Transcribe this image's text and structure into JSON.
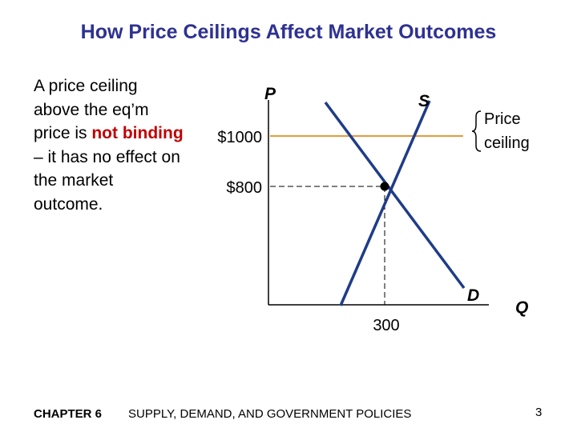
{
  "slide": {
    "title": "How Price Ceilings Affect Market Outcomes",
    "body": {
      "part1": "A price ceiling above the eq’m price is ",
      "emphasis": "not binding",
      "part2": " – it has no effect on the market outcome."
    },
    "footer": {
      "chapter": "CHAPTER 6",
      "subject": "SUPPLY, DEMAND, AND GOVERNMENT POLICIES",
      "page": "3"
    }
  },
  "diagram": {
    "axis_p_label": "P",
    "axis_q_label": "Q",
    "supply_label": "S",
    "demand_label": "D",
    "ceiling_price_label": "$1000",
    "eq_price_label": "$800",
    "eq_quantity_label": "300",
    "ceiling_label_line1": "Price",
    "ceiling_label_line2": "ceiling",
    "colors": {
      "curves": "#1f3c88",
      "ceiling_line": "#e69a3c",
      "title": "#2e3192",
      "emphasis": "#c00000"
    }
  }
}
